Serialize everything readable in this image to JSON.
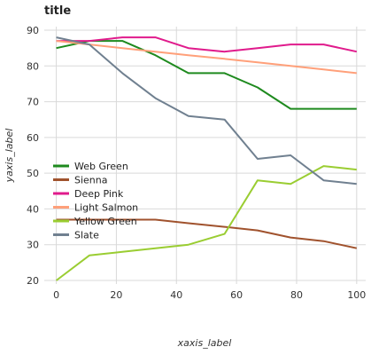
{
  "chart_data": {
    "type": "line",
    "title": "title",
    "xlabel": "xaxis_label",
    "ylabel": "yaxis_label",
    "xlim": [
      -4,
      103
    ],
    "ylim": [
      19,
      91
    ],
    "x_ticks": [
      0,
      20,
      40,
      60,
      80,
      100
    ],
    "y_ticks": [
      20,
      30,
      40,
      50,
      60,
      70,
      80,
      90
    ],
    "grid": true,
    "legend_position": "center",
    "x": [
      0,
      11,
      22,
      33,
      44,
      56,
      67,
      78,
      89,
      100
    ],
    "series": [
      {
        "name": "Web Green",
        "color": "#1e8a1e",
        "values": [
          85,
          87,
          87,
          83,
          78,
          78,
          74,
          68,
          68,
          68
        ]
      },
      {
        "name": "Sienna",
        "color": "#a0522d",
        "values": [
          37,
          37,
          37,
          37,
          36,
          35,
          34,
          32,
          31,
          29
        ]
      },
      {
        "name": "Deep Pink",
        "color": "#e01b8c",
        "values": [
          87,
          87,
          88,
          88,
          85,
          84,
          85,
          86,
          86,
          84
        ]
      },
      {
        "name": "Light Salmon",
        "color": "#ffa07a",
        "values": [
          87,
          86,
          85,
          84,
          83,
          82,
          81,
          80,
          79,
          78
        ]
      },
      {
        "name": "Yellow Green",
        "color": "#9acd32",
        "values": [
          20,
          27,
          28,
          29,
          30,
          33,
          48,
          47,
          52,
          51
        ]
      },
      {
        "name": "Slate",
        "color": "#708090",
        "values": [
          88,
          86,
          78,
          71,
          66,
          65,
          54,
          55,
          48,
          47
        ]
      }
    ]
  }
}
